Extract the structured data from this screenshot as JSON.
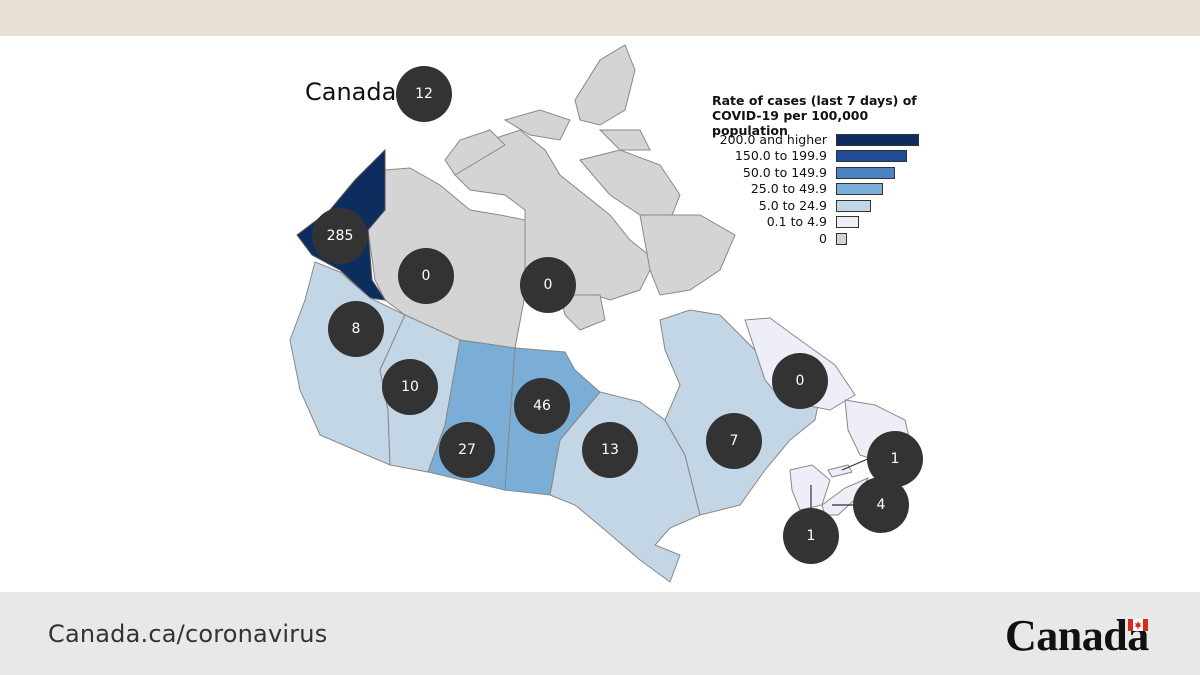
{
  "header": {},
  "map": {
    "title": "Canada",
    "national_count": "12",
    "regions": [
      {
        "name": "Yukon",
        "count": "285",
        "color": "#0d2d5e"
      },
      {
        "name": "Northwest Territories",
        "count": "0",
        "color": "#d4d4d4"
      },
      {
        "name": "Nunavut",
        "count": "0",
        "color": "#d4d4d4"
      },
      {
        "name": "British Columbia",
        "count": "8",
        "color": "#c3d6e6"
      },
      {
        "name": "Alberta",
        "count": "10",
        "color": "#c3d6e6"
      },
      {
        "name": "Saskatchewan",
        "count": "27",
        "color": "#7aaed6"
      },
      {
        "name": "Manitoba",
        "count": "46",
        "color": "#7aaed6"
      },
      {
        "name": "Ontario",
        "count": "13",
        "color": "#c3d6e6"
      },
      {
        "name": "Quebec",
        "count": "7",
        "color": "#c3d6e6"
      },
      {
        "name": "Newfoundland and Labrador",
        "count": "0",
        "color": "#eeeef9"
      },
      {
        "name": "Prince Edward Island",
        "count": "1",
        "color": "#eeeef9"
      },
      {
        "name": "Nova Scotia",
        "count": "4",
        "color": "#eeeef9"
      },
      {
        "name": "New Brunswick",
        "count": "1",
        "color": "#eeeef9"
      }
    ]
  },
  "legend": {
    "title": "Rate of cases (last 7 days) of COVID-19 per 100,000 population",
    "items": [
      {
        "label": "200.0 and higher",
        "color": "#0d2d5e"
      },
      {
        "label": "150.0 to 199.9",
        "color": "#1f4e96"
      },
      {
        "label": "50.0 to 149.9",
        "color": "#4a83c0"
      },
      {
        "label": "25.0 to 49.9",
        "color": "#7aaed6"
      },
      {
        "label": "5.0 to 24.9",
        "color": "#c3d6e6"
      },
      {
        "label": "0.1 to 4.9",
        "color": "#eeeef9"
      },
      {
        "label": "0",
        "color": "#d4d4d4"
      }
    ]
  },
  "footer": {
    "url": "Canada.ca/coronavirus",
    "wordmark": "Canada",
    "flag_color": "#d52b1e"
  }
}
